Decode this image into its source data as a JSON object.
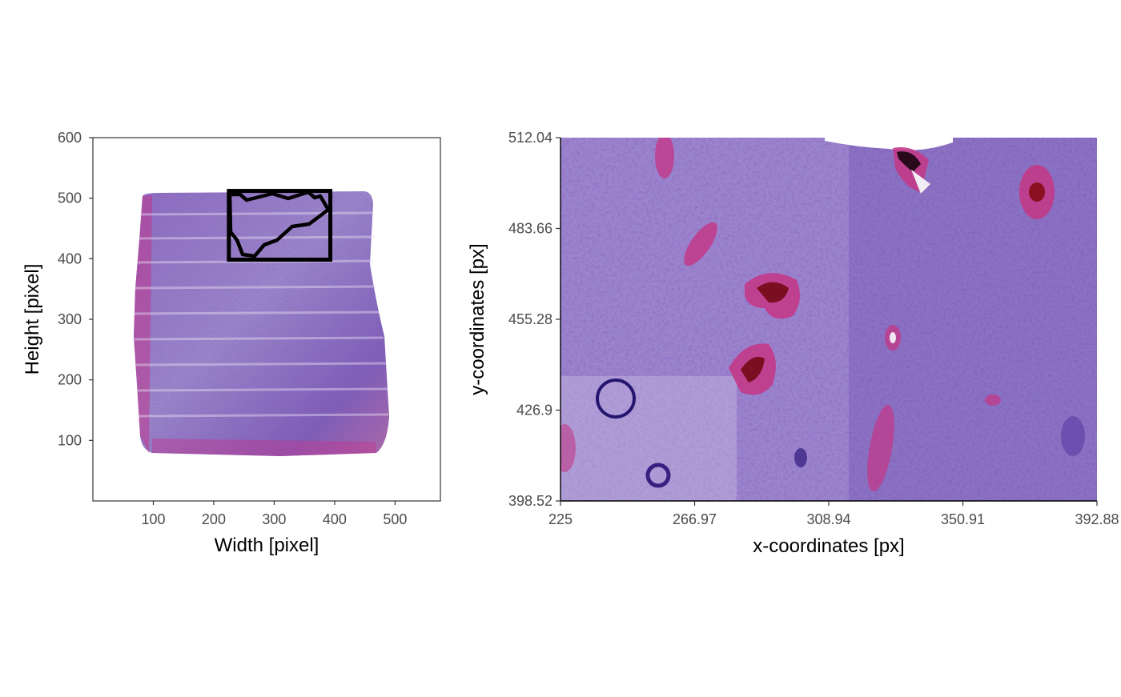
{
  "chart_data": [
    {
      "type": "image",
      "name": "overview",
      "xlabel": "Width [pixel]",
      "ylabel": "Height [pixel]",
      "xlim": [
        0,
        575
      ],
      "ylim": [
        0,
        600
      ],
      "xticks": [
        100,
        200,
        300,
        400,
        500
      ],
      "yticks": [
        100,
        200,
        300,
        400,
        500,
        600
      ],
      "tissue_extent": {
        "x": [
          80,
          485
        ],
        "y": [
          75,
          512
        ]
      },
      "annotations": [
        {
          "type": "rectangle",
          "label": "zoom-region",
          "x": [
            225,
            392.88
          ],
          "y": [
            398.52,
            512.04
          ],
          "color": "#000000"
        }
      ],
      "colors": {
        "tissue_light": "#b8a6d6",
        "tissue_dark": "#6d4ea8",
        "stain_pink": "#c0388e",
        "frame": "#000000"
      }
    },
    {
      "type": "image",
      "name": "zoom",
      "xlabel": "x-coordinates [px]",
      "ylabel": "y-coordinates [px]",
      "xlim": [
        225,
        392.88
      ],
      "ylim": [
        398.52,
        512.04
      ],
      "xticks": [
        "225",
        "266.97",
        "308.94",
        "350.91",
        "392.88"
      ],
      "yticks": [
        "398.52",
        "426.9",
        "455.28",
        "483.66",
        "512.04"
      ],
      "colors": {
        "tissue_light": "#a995d2",
        "tissue_dark": "#5b3aa3",
        "stain_pink": "#c23a88",
        "stain_dark": "#7a0f22"
      }
    }
  ]
}
